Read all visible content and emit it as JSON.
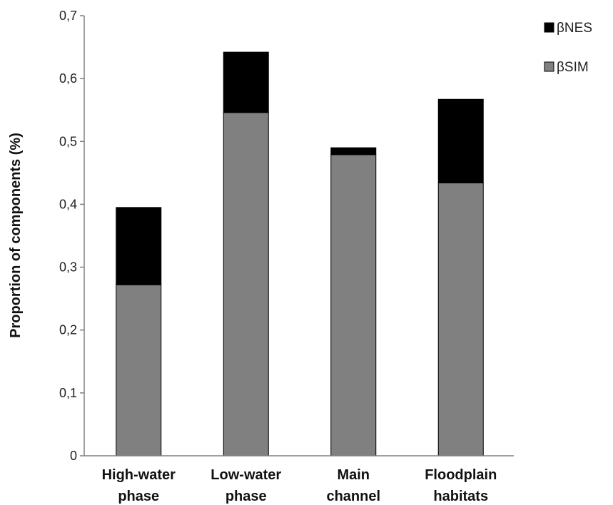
{
  "chart_data": {
    "type": "bar",
    "stacked": true,
    "categories": [
      [
        "High-water",
        "phase"
      ],
      [
        "Low-water",
        "phase"
      ],
      [
        "Main",
        "channel"
      ],
      [
        "Floodplain",
        "habitats"
      ]
    ],
    "series": [
      {
        "name": "βSIM",
        "color": "#808080",
        "values": [
          0.272,
          0.546,
          0.479,
          0.434
        ]
      },
      {
        "name": "βNES",
        "color": "#000000",
        "values": [
          0.123,
          0.096,
          0.011,
          0.133
        ]
      }
    ],
    "legend_order": [
      "βNES",
      "βSIM"
    ],
    "title": "",
    "xlabel": "",
    "ylabel": "Proportion of components (%)",
    "ylim": [
      0,
      0.7
    ],
    "yticks": [
      "0",
      "0,1",
      "0,2",
      "0,3",
      "0,4",
      "0,5",
      "0,6",
      "0,7"
    ],
    "grid": false,
    "legend_position": "top-right"
  }
}
